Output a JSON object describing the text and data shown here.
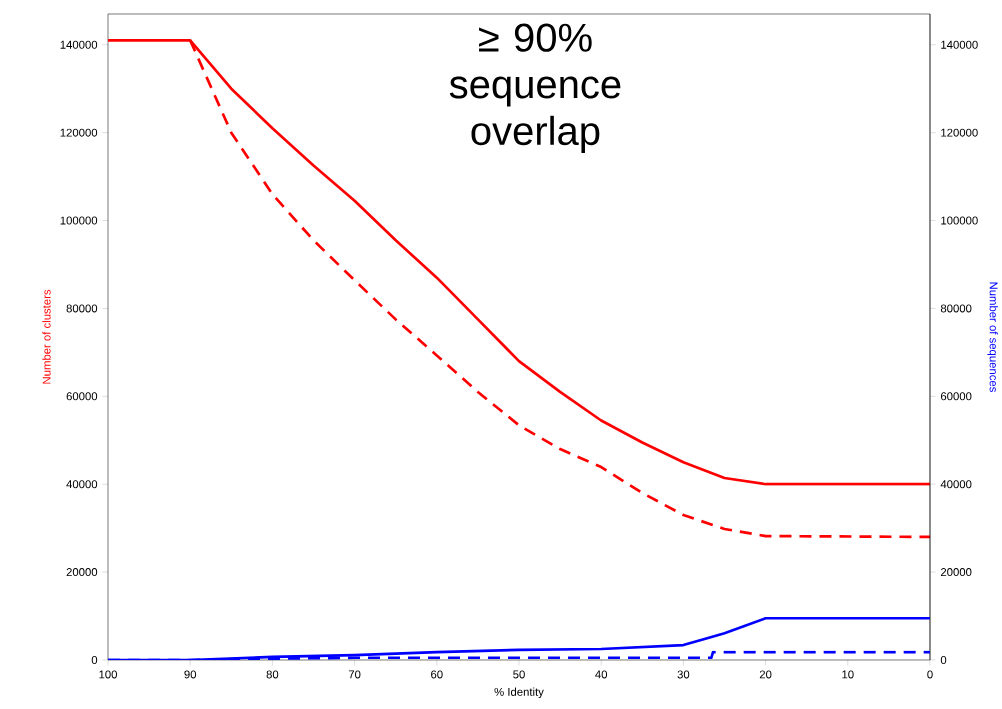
{
  "chart_data": {
    "type": "line",
    "xlabel": "% Identity",
    "ylabel": "Number of clusters",
    "y2label": "Number of sequences",
    "annotations": [
      "≥ 90% sequence overlap"
    ],
    "xlim": [
      100,
      0
    ],
    "xticks": [
      100,
      90,
      80,
      70,
      60,
      50,
      40,
      30,
      20,
      10,
      0
    ],
    "ylim": [
      0,
      147000
    ],
    "yticks": [
      0,
      20000,
      40000,
      60000,
      80000,
      100000,
      120000,
      140000
    ],
    "y2lim": [
      0,
      147000
    ],
    "y2ticks": [
      0,
      20000,
      40000,
      60000,
      80000,
      100000,
      120000,
      140000
    ],
    "series": [
      {
        "color": "#ff0000",
        "line_style": "solid",
        "x": [
          100,
          90,
          85,
          80,
          75,
          70,
          65,
          60,
          55,
          50,
          45,
          40,
          35,
          30,
          25,
          20,
          0
        ],
        "values": [
          141000,
          141000,
          130000,
          121000,
          112500,
          104500,
          95500,
          87000,
          77500,
          68000,
          61000,
          54500,
          49500,
          45000,
          41400,
          40000,
          40000
        ]
      },
      {
        "color": "#ff0000",
        "line_style": "dashed",
        "x": [
          90,
          85,
          80,
          75,
          70,
          65,
          60,
          55,
          50,
          45,
          40,
          35,
          30,
          25,
          20,
          0
        ],
        "values": [
          141000,
          120000,
          106000,
          95500,
          86400,
          77500,
          69300,
          61000,
          53400,
          48000,
          43900,
          38000,
          33000,
          29800,
          28200,
          28000
        ]
      },
      {
        "color": "#0000ff",
        "line_style": "solid",
        "axis": "y2",
        "x": [
          100,
          90,
          80,
          70,
          60,
          50,
          40,
          30,
          27,
          25,
          20,
          0
        ],
        "values": [
          0,
          0,
          700,
          1100,
          1800,
          2300,
          2500,
          3400,
          5000,
          6100,
          9500,
          9500
        ]
      },
      {
        "color": "#0000ff",
        "line_style": "dashed",
        "axis": "y2",
        "x": [
          100,
          90,
          80,
          70,
          60,
          50,
          40,
          30,
          26.6,
          26.4,
          0
        ],
        "values": [
          0,
          0,
          300,
          500,
          500,
          500,
          500,
          500,
          500,
          1800,
          1800
        ]
      }
    ]
  }
}
